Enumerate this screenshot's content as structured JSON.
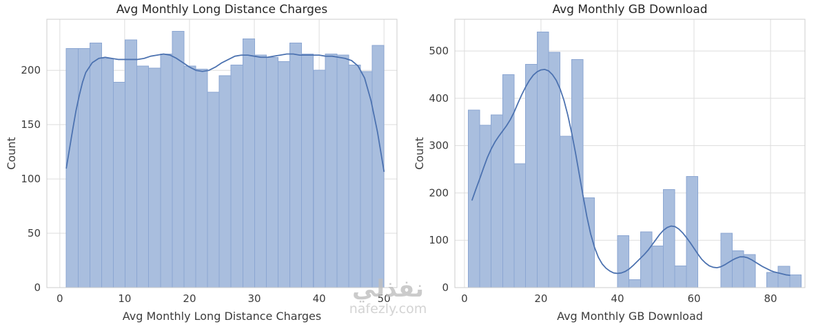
{
  "colors": {
    "bar_fill": "#a9bede",
    "bar_edge": "#8ba6d2",
    "kde_line": "#4c72b0",
    "grid": "#dddddd",
    "spine": "#cccccc",
    "tick_text": "#3c3c3c",
    "title_text": "#262626",
    "watermark": "#c4c4c4",
    "background": "#ffffff"
  },
  "watermark": {
    "arabic": "نفذلي",
    "domain": "nafezly.com"
  },
  "chart_data": [
    {
      "type": "histogram+kde",
      "title": "Avg Monthly Long Distance Charges",
      "xlabel": "Avg Monthly Long Distance Charges",
      "ylabel": "Count",
      "bin_start": 1,
      "bin_width": 1.8148,
      "values": [
        220,
        220,
        225,
        211,
        189,
        228,
        204,
        202,
        215,
        236,
        204,
        201,
        180,
        195,
        205,
        229,
        214,
        212,
        208,
        225,
        215,
        200,
        215,
        214,
        205,
        199,
        223
      ],
      "kde": [
        [
          1,
          110
        ],
        [
          1.5,
          128
        ],
        [
          2,
          146
        ],
        [
          2.5,
          163
        ],
        [
          3,
          177
        ],
        [
          3.5,
          189
        ],
        [
          4,
          198
        ],
        [
          5,
          207
        ],
        [
          6,
          211
        ],
        [
          7,
          212
        ],
        [
          8,
          211
        ],
        [
          9,
          210
        ],
        [
          10,
          210
        ],
        [
          11,
          210
        ],
        [
          12,
          210
        ],
        [
          13,
          211
        ],
        [
          14,
          213
        ],
        [
          15,
          214
        ],
        [
          16,
          215
        ],
        [
          17,
          214
        ],
        [
          18,
          211
        ],
        [
          19,
          207
        ],
        [
          20,
          203
        ],
        [
          21,
          200
        ],
        [
          22,
          199
        ],
        [
          23,
          200
        ],
        [
          24,
          203
        ],
        [
          25,
          207
        ],
        [
          26,
          210
        ],
        [
          27,
          213
        ],
        [
          28,
          214
        ],
        [
          29,
          214
        ],
        [
          30,
          213
        ],
        [
          31,
          212
        ],
        [
          32,
          212
        ],
        [
          33,
          213
        ],
        [
          34,
          214
        ],
        [
          35,
          215
        ],
        [
          36,
          215
        ],
        [
          37,
          214
        ],
        [
          38,
          214
        ],
        [
          39,
          214
        ],
        [
          40,
          214
        ],
        [
          41,
          213
        ],
        [
          42,
          213
        ],
        [
          43,
          212
        ],
        [
          44,
          211
        ],
        [
          45,
          209
        ],
        [
          46,
          204
        ],
        [
          47,
          193
        ],
        [
          48,
          172
        ],
        [
          49,
          143
        ],
        [
          50,
          107
        ]
      ],
      "xlim": [
        -2,
        52
      ],
      "ylim": [
        0,
        247
      ],
      "xticks": [
        0,
        10,
        20,
        30,
        40,
        50
      ],
      "yticks": [
        0,
        50,
        100,
        150,
        200
      ],
      "grid": true,
      "legend": "none"
    },
    {
      "type": "histogram+kde",
      "title": "Avg Monthly GB Download",
      "xlabel": "Avg Monthly GB Download",
      "ylabel": "Count",
      "bin_start": 1,
      "bin_width": 3,
      "values": [
        375,
        343,
        365,
        450,
        262,
        472,
        540,
        497,
        320,
        482,
        190,
        0,
        0,
        110,
        17,
        118,
        88,
        207,
        46,
        235,
        0,
        0,
        115,
        78,
        70,
        0,
        32,
        45,
        27
      ],
      "kde": [
        [
          2,
          185
        ],
        [
          3,
          208
        ],
        [
          4,
          230
        ],
        [
          5,
          253
        ],
        [
          6,
          275
        ],
        [
          7,
          293
        ],
        [
          8,
          308
        ],
        [
          9,
          320
        ],
        [
          10,
          331
        ],
        [
          11,
          342
        ],
        [
          12,
          355
        ],
        [
          13,
          371
        ],
        [
          14,
          390
        ],
        [
          15,
          408
        ],
        [
          16,
          424
        ],
        [
          17,
          438
        ],
        [
          18,
          449
        ],
        [
          19,
          456
        ],
        [
          20,
          460
        ],
        [
          21,
          461
        ],
        [
          22,
          458
        ],
        [
          23,
          450
        ],
        [
          24,
          438
        ],
        [
          25,
          420
        ],
        [
          26,
          396
        ],
        [
          27,
          365
        ],
        [
          28,
          328
        ],
        [
          29,
          286
        ],
        [
          30,
          240
        ],
        [
          31,
          194
        ],
        [
          32,
          150
        ],
        [
          33,
          113
        ],
        [
          34,
          85
        ],
        [
          35,
          64
        ],
        [
          36,
          50
        ],
        [
          37,
          41
        ],
        [
          38,
          35
        ],
        [
          39,
          31
        ],
        [
          40,
          30
        ],
        [
          41,
          31
        ],
        [
          42,
          34
        ],
        [
          43,
          39
        ],
        [
          44,
          46
        ],
        [
          45,
          54
        ],
        [
          46,
          62
        ],
        [
          47,
          70
        ],
        [
          48,
          79
        ],
        [
          49,
          90
        ],
        [
          50,
          101
        ],
        [
          51,
          112
        ],
        [
          52,
          121
        ],
        [
          53,
          127
        ],
        [
          54,
          130
        ],
        [
          55,
          129
        ],
        [
          56,
          124
        ],
        [
          57,
          116
        ],
        [
          58,
          106
        ],
        [
          59,
          95
        ],
        [
          60,
          83
        ],
        [
          61,
          71
        ],
        [
          62,
          60
        ],
        [
          63,
          52
        ],
        [
          64,
          46
        ],
        [
          65,
          43
        ],
        [
          66,
          42
        ],
        [
          67,
          44
        ],
        [
          68,
          48
        ],
        [
          69,
          53
        ],
        [
          70,
          58
        ],
        [
          71,
          62
        ],
        [
          72,
          65
        ],
        [
          73,
          65
        ],
        [
          74,
          63
        ],
        [
          75,
          59
        ],
        [
          76,
          54
        ],
        [
          77,
          49
        ],
        [
          78,
          44
        ],
        [
          79,
          40
        ],
        [
          80,
          36
        ],
        [
          81,
          33
        ],
        [
          82,
          31
        ],
        [
          83,
          29
        ],
        [
          84,
          27
        ],
        [
          85,
          26
        ]
      ],
      "xlim": [
        -2.5,
        89
      ],
      "ylim": [
        0,
        567
      ],
      "xticks": [
        0,
        20,
        40,
        60,
        80
      ],
      "yticks": [
        0,
        100,
        200,
        300,
        400,
        500
      ],
      "grid": true,
      "legend": "none"
    }
  ]
}
